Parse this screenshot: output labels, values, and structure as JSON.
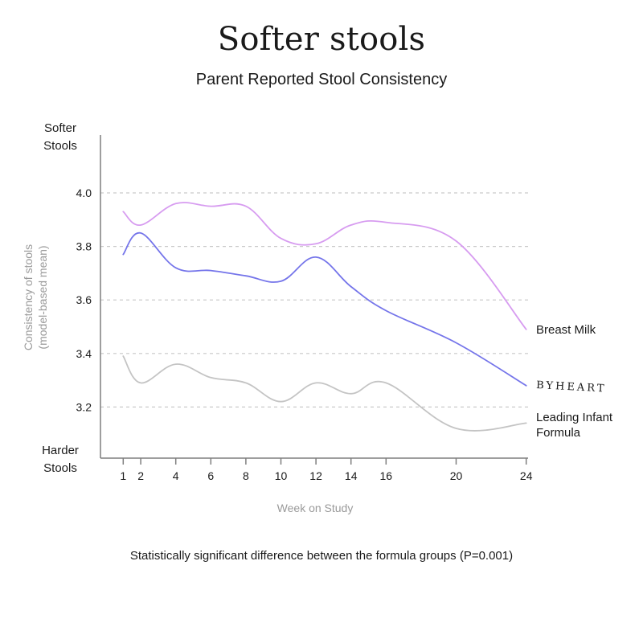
{
  "title": "Softer stools",
  "subtitle": "Parent Reported Stool Consistency",
  "y_top_label": [
    "Softer",
    "Stools"
  ],
  "y_bottom_label": [
    "Harder",
    "Stools"
  ],
  "footnote": "Statistically significant difference between the formula groups (P=0.001)",
  "chart_data": {
    "type": "line",
    "xlabel": "Week on Study",
    "ylabel": [
      "Consistency of stools",
      "(model-based mean)"
    ],
    "x_ticks": [
      1,
      2,
      4,
      6,
      8,
      10,
      12,
      14,
      16,
      20,
      24
    ],
    "y_ticks": [
      "4.0",
      "3.8",
      "3.6",
      "3.4",
      "3.2"
    ],
    "xlim": [
      0,
      24
    ],
    "ylim": [
      3.0,
      4.2
    ],
    "grid": "horizontal dashed",
    "series": [
      {
        "name": "Breast Milk",
        "color": "#d79cf0",
        "x": [
          1,
          2,
          4,
          6,
          8,
          10,
          12,
          14,
          16,
          20,
          24
        ],
        "y": [
          3.93,
          3.88,
          3.96,
          3.95,
          3.95,
          3.83,
          3.81,
          3.88,
          3.89,
          3.82,
          3.49
        ]
      },
      {
        "name": "BYHEART",
        "color": "#7575ea",
        "x": [
          1,
          2,
          4,
          6,
          8,
          10,
          12,
          14,
          16,
          20,
          24
        ],
        "y": [
          3.77,
          3.85,
          3.72,
          3.71,
          3.69,
          3.67,
          3.76,
          3.65,
          3.56,
          3.44,
          3.28
        ]
      },
      {
        "name": "Leading Infant Formula",
        "color": "#c4c4c4",
        "x": [
          1,
          2,
          4,
          6,
          8,
          10,
          12,
          14,
          16,
          20,
          24
        ],
        "y": [
          3.39,
          3.29,
          3.36,
          3.31,
          3.29,
          3.22,
          3.29,
          3.25,
          3.29,
          3.12,
          3.14
        ]
      }
    ],
    "series_labels": {
      "breast_milk": "Breast Milk",
      "byheart": "BYHEART",
      "leading_line1": "Leading Infant",
      "leading_line2": "Formula"
    }
  }
}
